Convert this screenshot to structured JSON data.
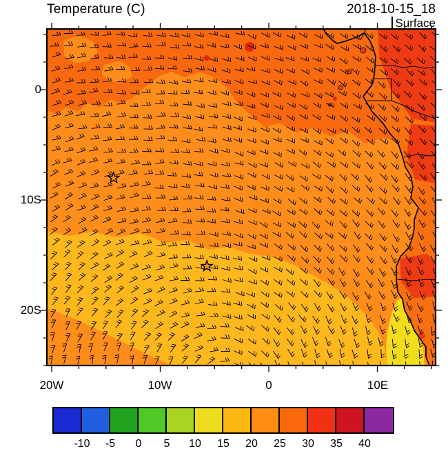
{
  "header": {
    "title": "Temperature (C)",
    "datetime": "2018-10-15_18",
    "level": "Surface"
  },
  "axes": {
    "x_tick_labels": [
      "20W",
      "10W",
      "0",
      "10E"
    ],
    "y_tick_labels": [
      "0",
      "10S",
      "20S"
    ]
  },
  "colorbar": {
    "tick_labels": [
      "-10",
      "-5",
      "0",
      "5",
      "10",
      "15",
      "20",
      "25",
      "30",
      "35",
      "40"
    ],
    "colors": [
      "#1a2ad2",
      "#2060e0",
      "#1ea41e",
      "#50c828",
      "#a8d422",
      "#eedc1e",
      "#fbb813",
      "#ff8c14",
      "#f8680c",
      "#f23014",
      "#cd1420",
      "#8c28a0"
    ]
  },
  "map": {
    "sea_color": "#ff8d1c",
    "warm_band_color": "#f9690f",
    "mild_region_color": "#ffb71e",
    "cool_coast_color": "#f2dc1c",
    "hot_patch_color": "#ef3b14",
    "hot_dot_color": "#dc2810",
    "island_color": "#e84414",
    "land_base_color": "#f8700f",
    "coastline_color": "#000000",
    "stars": [
      {
        "lon": -14.3,
        "lat": -8.0
      },
      {
        "lon": -5.7,
        "lat": -16.0
      }
    ]
  },
  "chart_data": {
    "type": "heatmap",
    "title": "Temperature (C)",
    "valid_time": "2018-10-15_18",
    "level": "Surface",
    "x_axis": {
      "tick_labels": [
        "20W",
        "10W",
        "0",
        "10E"
      ],
      "range_deg_lon": [
        -20.4,
        15.4
      ]
    },
    "y_axis": {
      "tick_labels": [
        "0",
        "10S",
        "20S"
      ],
      "range_deg_lat": [
        -25.0,
        5.5
      ]
    },
    "colorbar_ticks_c": [
      -10,
      -5,
      0,
      5,
      10,
      15,
      20,
      25,
      30,
      35,
      40
    ],
    "regions": [
      {
        "area": "equatorial band across the north of the domain",
        "temp_c": "25-30"
      },
      {
        "area": "central open ocean",
        "temp_c": "20-25"
      },
      {
        "area": "south-central ocean (subtropical)",
        "temp_c": "15-20"
      },
      {
        "area": "southeastern coastal strip (Benguela upwelling)",
        "temp_c": "10-15"
      },
      {
        "area": "African coastal land hot patches",
        "temp_c": "30-35"
      }
    ],
    "overlay": "surface wind barbs showing anticyclonic South Atlantic High circulation",
    "markers": [
      "open star near 14W 8S",
      "open star near 6W 16S"
    ]
  }
}
